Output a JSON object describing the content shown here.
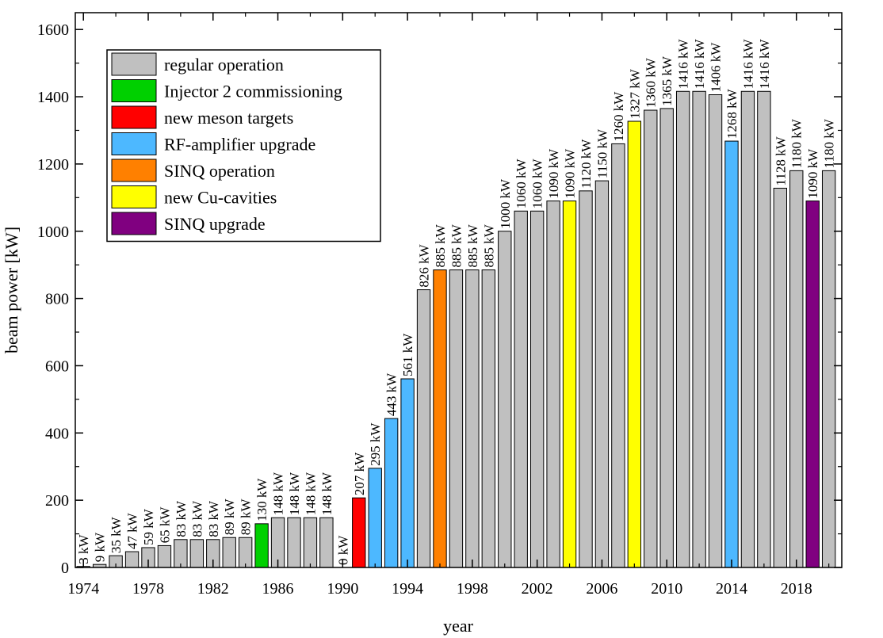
{
  "chart_data": {
    "type": "bar",
    "xlabel": "year",
    "ylabel": "beam power [kW]",
    "ylim": [
      0,
      1650
    ],
    "xlim": [
      1973.5,
      2020.8
    ],
    "yticks": [
      0,
      200,
      400,
      600,
      800,
      1000,
      1200,
      1400,
      1600
    ],
    "xticks": [
      "1974",
      "1978",
      "1982",
      "1986",
      "1990",
      "1994",
      "1998",
      "2002",
      "2006",
      "2010",
      "2014",
      "2018"
    ],
    "categories": [
      {
        "name": "regular operation",
        "color": "#c0c0c0"
      },
      {
        "name": "Injector 2 commissioning",
        "color": "#00d000"
      },
      {
        "name": "new meson targets",
        "color": "#ff0000"
      },
      {
        "name": "RF-amplifier upgrade",
        "color": "#4db8ff"
      },
      {
        "name": "SINQ operation",
        "color": "#ff8000"
      },
      {
        "name": "new Cu-cavities",
        "color": "#ffff00"
      },
      {
        "name": "SINQ upgrade",
        "color": "#800080"
      }
    ],
    "legend_position": "top-left",
    "bars": [
      {
        "year": 1974,
        "value": 3,
        "label": "3 kW",
        "category": 0
      },
      {
        "year": 1975,
        "value": 9,
        "label": "9 kW",
        "category": 0
      },
      {
        "year": 1976,
        "value": 35,
        "label": "35 kW",
        "category": 0
      },
      {
        "year": 1977,
        "value": 47,
        "label": "47 kW",
        "category": 0
      },
      {
        "year": 1978,
        "value": 59,
        "label": "59 kW",
        "category": 0
      },
      {
        "year": 1979,
        "value": 65,
        "label": "65 kW",
        "category": 0
      },
      {
        "year": 1980,
        "value": 83,
        "label": "83 kW",
        "category": 0
      },
      {
        "year": 1981,
        "value": 83,
        "label": "83 kW",
        "category": 0
      },
      {
        "year": 1982,
        "value": 83,
        "label": "83 kW",
        "category": 0
      },
      {
        "year": 1983,
        "value": 89,
        "label": "89 kW",
        "category": 0
      },
      {
        "year": 1984,
        "value": 89,
        "label": "89 kW",
        "category": 0
      },
      {
        "year": 1985,
        "value": 130,
        "label": "130 kW",
        "category": 1
      },
      {
        "year": 1986,
        "value": 148,
        "label": "148 kW",
        "category": 0
      },
      {
        "year": 1987,
        "value": 148,
        "label": "148 kW",
        "category": 0
      },
      {
        "year": 1988,
        "value": 148,
        "label": "148 kW",
        "category": 0
      },
      {
        "year": 1989,
        "value": 148,
        "label": "148 kW",
        "category": 0
      },
      {
        "year": 1990,
        "value": 0,
        "label": "0 kW",
        "category": 0
      },
      {
        "year": 1991,
        "value": 207,
        "label": "207 kW",
        "category": 2
      },
      {
        "year": 1992,
        "value": 295,
        "label": "295 kW",
        "category": 3
      },
      {
        "year": 1993,
        "value": 443,
        "label": "443 kW",
        "category": 3
      },
      {
        "year": 1994,
        "value": 561,
        "label": "561 kW",
        "category": 3
      },
      {
        "year": 1995,
        "value": 826,
        "label": "826 kW",
        "category": 0
      },
      {
        "year": 1996,
        "value": 885,
        "label": "885 kW",
        "category": 4
      },
      {
        "year": 1997,
        "value": 885,
        "label": "885 kW",
        "category": 0
      },
      {
        "year": 1998,
        "value": 885,
        "label": "885 kW",
        "category": 0
      },
      {
        "year": 1999,
        "value": 885,
        "label": "885 kW",
        "category": 0
      },
      {
        "year": 2000,
        "value": 1000,
        "label": "1000 kW",
        "category": 0
      },
      {
        "year": 2001,
        "value": 1060,
        "label": "1060 kW",
        "category": 0
      },
      {
        "year": 2002,
        "value": 1060,
        "label": "1060 kW",
        "category": 0
      },
      {
        "year": 2003,
        "value": 1090,
        "label": "1090 kW",
        "category": 0
      },
      {
        "year": 2004,
        "value": 1090,
        "label": "1090 kW",
        "category": 5
      },
      {
        "year": 2005,
        "value": 1120,
        "label": "1120 kW",
        "category": 0
      },
      {
        "year": 2006,
        "value": 1150,
        "label": "1150 kW",
        "category": 0
      },
      {
        "year": 2007,
        "value": 1260,
        "label": "1260 kW",
        "category": 0
      },
      {
        "year": 2008,
        "value": 1327,
        "label": "1327 kW",
        "category": 5
      },
      {
        "year": 2009,
        "value": 1360,
        "label": "1360 kW",
        "category": 0
      },
      {
        "year": 2010,
        "value": 1365,
        "label": "1365 kW",
        "category": 0
      },
      {
        "year": 2011,
        "value": 1416,
        "label": "1416 kW",
        "category": 0
      },
      {
        "year": 2012,
        "value": 1416,
        "label": "1416 kW",
        "category": 0
      },
      {
        "year": 2013,
        "value": 1406,
        "label": "1406 kW",
        "category": 0
      },
      {
        "year": 2014,
        "value": 1268,
        "label": "1268 kW",
        "category": 3
      },
      {
        "year": 2015,
        "value": 1416,
        "label": "1416 kW",
        "category": 0
      },
      {
        "year": 2016,
        "value": 1416,
        "label": "1416 kW",
        "category": 0
      },
      {
        "year": 2017,
        "value": 1128,
        "label": "1128 kW",
        "category": 0
      },
      {
        "year": 2018,
        "value": 1180,
        "label": "1180 kW",
        "category": 0
      },
      {
        "year": 2019,
        "value": 1090,
        "label": "1090 kW",
        "category": 6
      },
      {
        "year": 2020,
        "value": 1180,
        "label": "1180 kW",
        "category": 0
      }
    ]
  }
}
